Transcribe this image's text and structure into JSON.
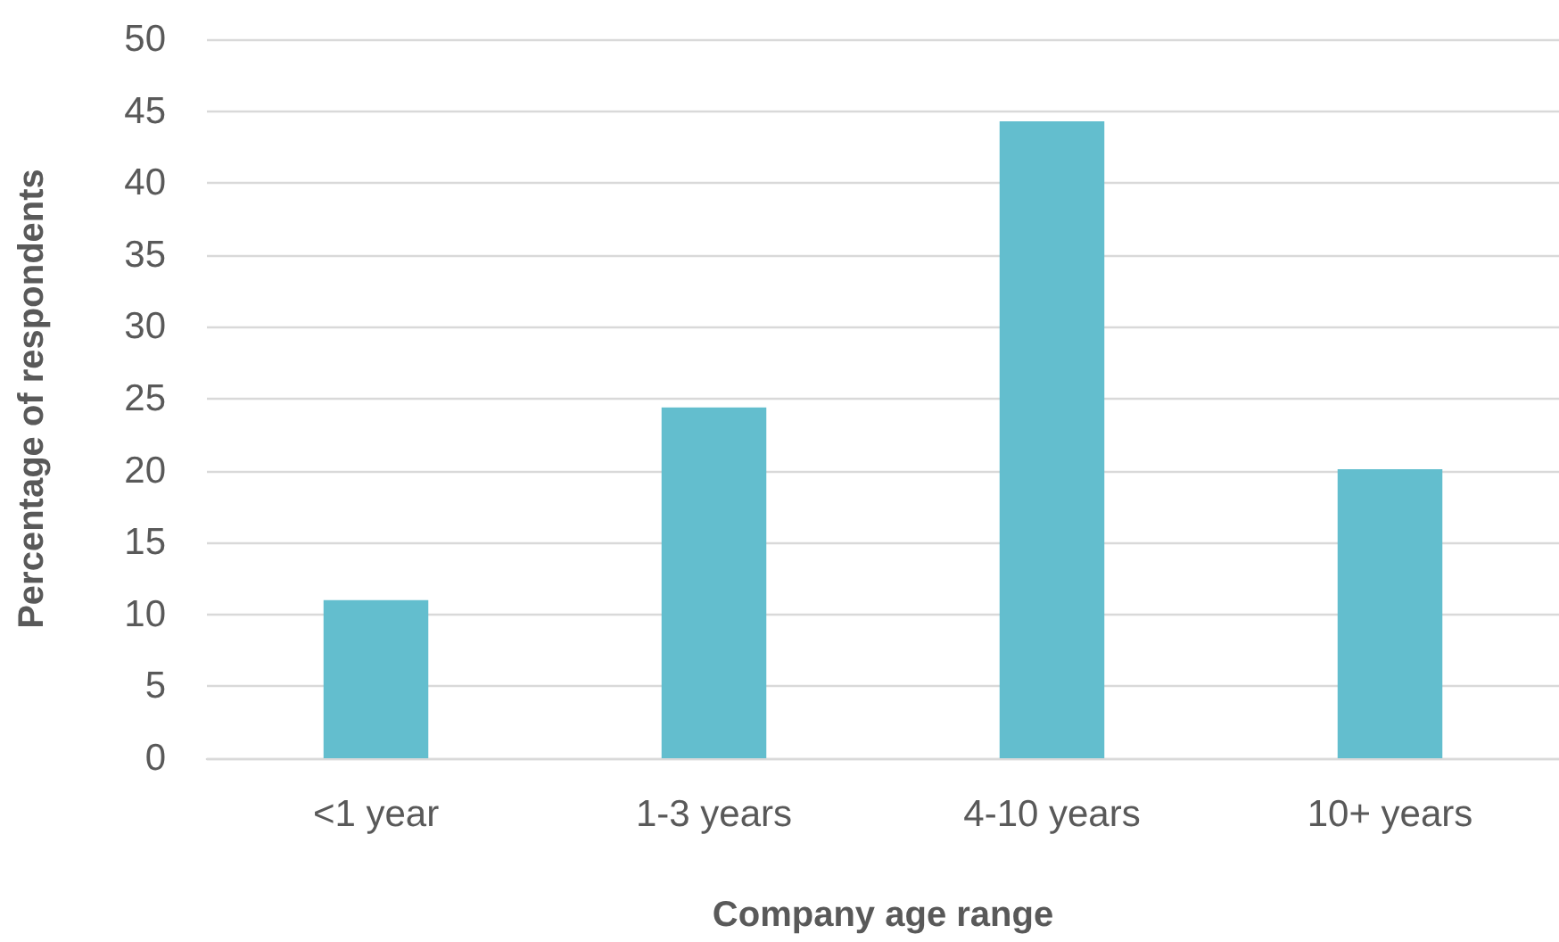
{
  "chart_data": {
    "type": "bar",
    "xlabel": "Company age range",
    "ylabel": "Percentage of respondents",
    "categories": [
      "<1 year",
      "1-3 years",
      "4-10 years",
      "10+ years"
    ],
    "values": [
      11.0,
      24.4,
      44.3,
      20.1
    ],
    "color": "#63bece",
    "ylim": [
      0,
      50
    ],
    "yticks": [
      0,
      5,
      10,
      15,
      20,
      25,
      30,
      35,
      40,
      45,
      50
    ],
    "grid": "y"
  }
}
